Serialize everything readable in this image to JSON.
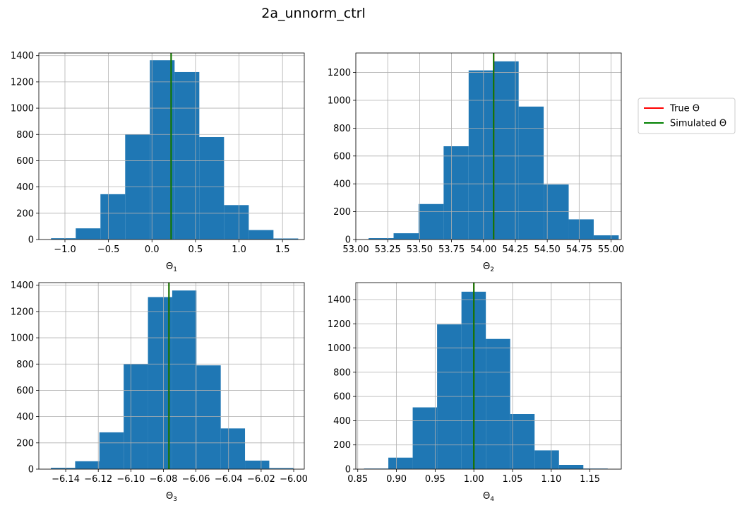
{
  "figure_title": "2a_unnorm_ctrl",
  "legend": {
    "placement": "right-of-top-row",
    "entries": [
      {
        "label": "True Θ",
        "color": "#ff0000"
      },
      {
        "label": "Simulated Θ",
        "color": "#008000"
      }
    ]
  },
  "colors": {
    "bars": "#1f77b4",
    "grid": "#b0b0b0"
  },
  "chart_data": [
    {
      "type": "bar",
      "xlabel": "Θ",
      "xlabel_sub": "1",
      "xlim": [
        -1.3,
        1.75
      ],
      "ylim": [
        0,
        1420
      ],
      "xticks": [
        -1.0,
        -0.5,
        0.0,
        0.5,
        1.0,
        1.5
      ],
      "xtick_labels": [
        "−1.0",
        "−0.5",
        "0.0",
        "0.5",
        "1.0",
        "1.5"
      ],
      "yticks": [
        0,
        200,
        400,
        600,
        800,
        1000,
        1200,
        1400
      ],
      "grid": true,
      "bin_edges": [
        -1.16,
        -0.876,
        -0.592,
        -0.308,
        -0.024,
        0.26,
        0.544,
        0.828,
        1.112,
        1.396,
        1.68
      ],
      "counts": [
        10,
        85,
        345,
        800,
        1365,
        1275,
        780,
        262,
        72,
        8
      ],
      "true_value": 0.22,
      "simulated_value": 0.22
    },
    {
      "type": "bar",
      "xlabel": "Θ",
      "xlabel_sub": "2",
      "xlim": [
        53.0,
        55.08
      ],
      "ylim": [
        0,
        1340
      ],
      "xticks": [
        53.0,
        53.25,
        53.5,
        53.75,
        54.0,
        54.25,
        54.5,
        54.75,
        55.0
      ],
      "xtick_labels": [
        "53.00",
        "53.25",
        "53.50",
        "53.75",
        "54.00",
        "54.25",
        "54.50",
        "54.75",
        "55.00"
      ],
      "yticks": [
        0,
        200,
        400,
        600,
        800,
        1000,
        1200
      ],
      "grid": true,
      "bin_edges": [
        53.1,
        53.296,
        53.492,
        53.688,
        53.884,
        54.08,
        54.276,
        54.472,
        54.668,
        54.864,
        55.06
      ],
      "counts": [
        10,
        45,
        255,
        670,
        1215,
        1280,
        955,
        395,
        145,
        30
      ],
      "true_value": 54.08,
      "simulated_value": 54.08
    },
    {
      "type": "bar",
      "xlabel": "Θ",
      "xlabel_sub": "3",
      "xlim": [
        -6.1565,
        -5.9935
      ],
      "ylim": [
        0,
        1420
      ],
      "xticks": [
        -6.14,
        -6.12,
        -6.1,
        -6.08,
        -6.06,
        -6.04,
        -6.02,
        -6.0
      ],
      "xtick_labels": [
        "−6.14",
        "−6.12",
        "−6.10",
        "−6.08",
        "−6.06",
        "−6.04",
        "−6.02",
        "−6.00"
      ],
      "yticks": [
        0,
        200,
        400,
        600,
        800,
        1000,
        1200,
        1400
      ],
      "grid": true,
      "bin_edges": [
        -6.1491,
        -6.1342,
        -6.1193,
        -6.1044,
        -6.0895,
        -6.0746,
        -6.0597,
        -6.0448,
        -6.0299,
        -6.015,
        -6.0001
      ],
      "counts": [
        10,
        60,
        280,
        800,
        1310,
        1360,
        790,
        310,
        65,
        8
      ],
      "true_value": -6.0766,
      "simulated_value": -6.0766
    },
    {
      "type": "bar",
      "xlabel": "Θ",
      "xlabel_sub": "4",
      "xlim": [
        0.8475,
        1.1905
      ],
      "ylim": [
        0,
        1540
      ],
      "xticks": [
        0.85,
        0.9,
        0.95,
        1.0,
        1.05,
        1.1,
        1.15
      ],
      "xtick_labels": [
        "0.85",
        "0.90",
        "0.95",
        "1.00",
        "1.05",
        "1.10",
        "1.15"
      ],
      "yticks": [
        0,
        200,
        400,
        600,
        800,
        1000,
        1200,
        1400
      ],
      "grid": true,
      "bin_edges": [
        0.858,
        0.8895,
        0.921,
        0.9525,
        0.984,
        1.0155,
        1.047,
        1.0785,
        1.11,
        1.1415,
        1.173
      ],
      "counts": [
        5,
        95,
        510,
        1195,
        1465,
        1075,
        455,
        155,
        35,
        5
      ],
      "true_value": 1.0,
      "simulated_value": 1.0
    }
  ]
}
